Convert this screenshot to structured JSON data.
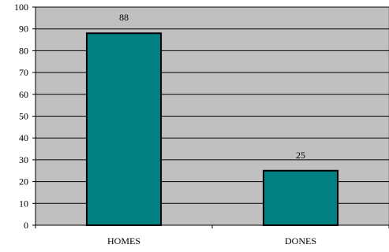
{
  "chart_data": {
    "type": "bar",
    "categories": [
      "HOMES",
      "DONES"
    ],
    "values": [
      88,
      25
    ],
    "data_labels": [
      "88",
      "25"
    ],
    "title": "",
    "xlabel": "",
    "ylabel": "",
    "ylim": [
      0,
      100
    ],
    "yticks": [
      "0",
      "10",
      "20",
      "30",
      "40",
      "50",
      "60",
      "70",
      "80",
      "90",
      "100"
    ],
    "grid": true,
    "legend": "none",
    "colors": {
      "bar_fill": "#008080",
      "bar_stroke": "#000000",
      "plot_background": "#c0c0c0",
      "grid": "#000000"
    }
  }
}
